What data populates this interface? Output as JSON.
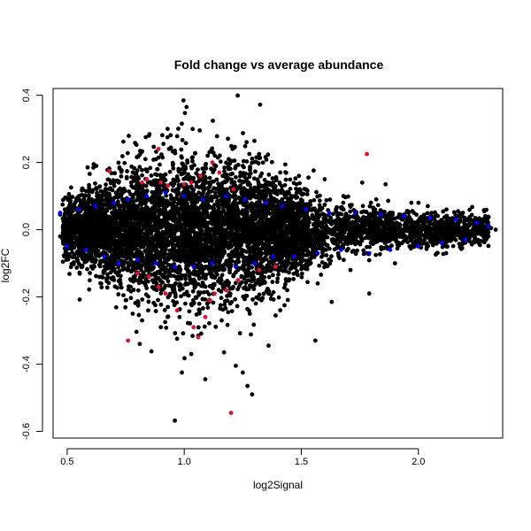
{
  "chart_data": {
    "type": "scatter",
    "title": "Fold change vs average abundance",
    "xlabel": "log2Signal",
    "ylabel": "log2FC",
    "xlim": [
      0.44,
      2.36
    ],
    "ylim": [
      -0.62,
      0.42
    ],
    "x_ticks": [
      0.5,
      1.0,
      1.5,
      2.0
    ],
    "x_tick_labels": [
      "0.5",
      "1.0",
      "1.5",
      "2.0"
    ],
    "y_ticks": [
      -0.6,
      -0.4,
      -0.2,
      0.0,
      0.2,
      0.4
    ],
    "y_tick_labels": [
      "-0.6",
      "-0.4",
      "-0.2",
      "0.0",
      "0.2",
      "0.4"
    ],
    "grid": false,
    "legend": "none",
    "colors": {
      "black": "#000000",
      "blue": "#0000ff",
      "red": "#dd1133"
    },
    "series": [
      {
        "color": "black",
        "points": [
          [
            1.01,
            0.365
          ],
          [
            0.74,
            0.262
          ],
          [
            0.79,
            0.258
          ],
          [
            0.88,
            0.232
          ],
          [
            0.96,
            0.235
          ],
          [
            1.14,
            0.278
          ],
          [
            1.32,
            0.225
          ],
          [
            0.68,
            0.182
          ],
          [
            0.84,
            0.178
          ],
          [
            1.0,
            0.18
          ],
          [
            1.25,
            0.19
          ],
          [
            1.41,
            0.17
          ],
          [
            1.49,
            0.16
          ],
          [
            1.6,
            0.15
          ],
          [
            1.76,
            0.14
          ],
          [
            1.86,
            0.135
          ],
          [
            0.81,
            -0.34
          ],
          [
            0.86,
            -0.362
          ],
          [
            0.96,
            -0.568
          ],
          [
            0.99,
            -0.425
          ],
          [
            1.03,
            -0.37
          ],
          [
            1.06,
            -0.315
          ],
          [
            1.09,
            -0.445
          ],
          [
            1.17,
            -0.365
          ],
          [
            1.22,
            -0.405
          ],
          [
            1.25,
            -0.425
          ],
          [
            1.29,
            -0.49
          ],
          [
            1.27,
            -0.465
          ],
          [
            1.36,
            -0.345
          ],
          [
            1.41,
            -0.24
          ],
          [
            1.56,
            -0.33
          ],
          [
            1.63,
            -0.215
          ],
          [
            1.79,
            -0.19
          ],
          [
            0.47,
            0.045
          ],
          [
            0.47,
            -0.02
          ],
          [
            0.49,
            0.06
          ],
          [
            0.55,
            -0.07
          ],
          [
            0.6,
            0.085
          ],
          [
            0.66,
            -0.11
          ],
          [
            0.7,
            -0.15
          ],
          [
            0.72,
            0.14
          ],
          [
            0.75,
            -0.21
          ],
          [
            0.78,
            -0.25
          ],
          [
            0.82,
            -0.27
          ],
          [
            0.9,
            -0.29
          ],
          [
            0.93,
            -0.23
          ],
          [
            0.98,
            -0.26
          ],
          [
            1.04,
            -0.22
          ],
          [
            1.1,
            0.22
          ],
          [
            1.16,
            -0.27
          ],
          [
            1.19,
            0.21
          ],
          [
            1.28,
            -0.25
          ],
          [
            1.33,
            -0.21
          ],
          [
            1.38,
            0.14
          ],
          [
            1.44,
            -0.18
          ],
          [
            1.52,
            0.12
          ],
          [
            1.57,
            -0.16
          ],
          [
            1.68,
            0.1
          ],
          [
            1.71,
            -0.12
          ],
          [
            1.82,
            0.09
          ],
          [
            1.9,
            -0.1
          ],
          [
            1.97,
            0.08
          ],
          [
            2.04,
            0.07
          ],
          [
            2.08,
            -0.07
          ],
          [
            2.12,
            0.06
          ],
          [
            2.19,
            0.05
          ],
          [
            2.23,
            -0.04
          ],
          [
            2.26,
            0.025
          ],
          [
            2.28,
            -0.02
          ],
          [
            2.31,
            0.005
          ],
          [
            2.33,
            0.0
          ]
        ]
      },
      {
        "color": "blue",
        "points": [
          [
            0.47,
            0.05
          ],
          [
            0.5,
            -0.05
          ],
          [
            0.55,
            0.06
          ],
          [
            0.58,
            -0.06
          ],
          [
            0.62,
            0.07
          ],
          [
            0.66,
            -0.08
          ],
          [
            0.7,
            0.08
          ],
          [
            0.72,
            -0.1
          ],
          [
            0.76,
            0.09
          ],
          [
            0.8,
            -0.09
          ],
          [
            0.84,
            0.1
          ],
          [
            0.88,
            -0.1
          ],
          [
            0.92,
            0.11
          ],
          [
            0.96,
            -0.11
          ],
          [
            1.0,
            0.1
          ],
          [
            1.04,
            -0.11
          ],
          [
            1.08,
            0.09
          ],
          [
            1.12,
            -0.1
          ],
          [
            1.18,
            0.1
          ],
          [
            1.22,
            -0.11
          ],
          [
            1.26,
            0.09
          ],
          [
            1.3,
            -0.1
          ],
          [
            1.35,
            0.08
          ],
          [
            1.38,
            -0.08
          ],
          [
            1.42,
            0.07
          ],
          [
            1.47,
            -0.08
          ],
          [
            1.52,
            0.06
          ],
          [
            1.57,
            -0.07
          ],
          [
            1.62,
            0.05
          ],
          [
            1.67,
            -0.06
          ],
          [
            1.73,
            0.05
          ],
          [
            1.79,
            -0.07
          ],
          [
            1.84,
            0.045
          ],
          [
            1.88,
            -0.06
          ],
          [
            1.94,
            0.04
          ],
          [
            2.0,
            -0.05
          ],
          [
            2.05,
            0.035
          ],
          [
            2.1,
            -0.04
          ],
          [
            2.16,
            0.03
          ],
          [
            2.2,
            -0.03
          ],
          [
            2.25,
            0.02
          ],
          [
            2.3,
            0.01
          ]
        ]
      },
      {
        "color": "red",
        "points": [
          [
            0.68,
            0.175
          ],
          [
            0.82,
            0.14
          ],
          [
            0.84,
            0.15
          ],
          [
            0.89,
            0.24
          ],
          [
            0.9,
            0.14
          ],
          [
            0.93,
            0.13
          ],
          [
            1.0,
            0.135
          ],
          [
            1.03,
            0.14
          ],
          [
            1.07,
            0.16
          ],
          [
            1.12,
            0.2
          ],
          [
            1.15,
            0.17
          ],
          [
            1.21,
            0.12
          ],
          [
            1.78,
            0.225
          ],
          [
            0.76,
            -0.33
          ],
          [
            0.8,
            -0.13
          ],
          [
            0.85,
            -0.14
          ],
          [
            0.89,
            -0.17
          ],
          [
            0.92,
            -0.19
          ],
          [
            0.97,
            -0.24
          ],
          [
            1.04,
            -0.29
          ],
          [
            1.06,
            -0.32
          ],
          [
            1.09,
            -0.26
          ],
          [
            1.11,
            -0.21
          ],
          [
            1.13,
            -0.19
          ],
          [
            1.18,
            -0.18
          ],
          [
            1.2,
            -0.545
          ],
          [
            1.23,
            -0.15
          ],
          [
            1.32,
            -0.12
          ],
          [
            1.39,
            -0.11
          ]
        ]
      }
    ]
  }
}
